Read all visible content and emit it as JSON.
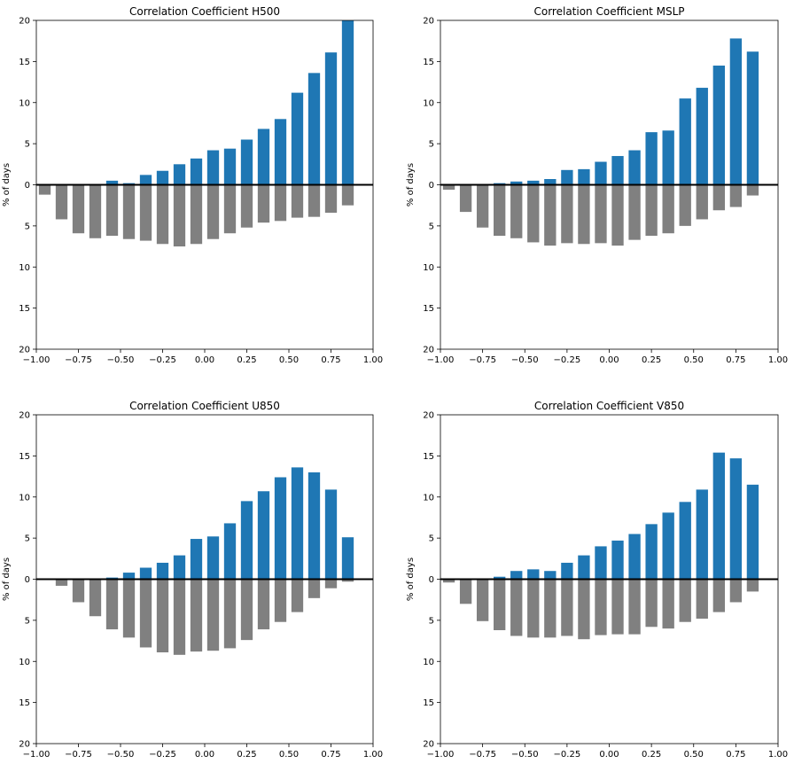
{
  "colors": {
    "positive": "#1f77b4",
    "negative": "#808080",
    "axis": "#000000",
    "background": "#ffffff"
  },
  "chart_data": [
    {
      "type": "bar",
      "title": "Correlation Coefficient H500",
      "xlabel": "",
      "ylabel": "% of days",
      "xlim": [
        -1.0,
        1.0
      ],
      "ylim": [
        -20,
        20
      ],
      "x_ticks": [
        "−1.00",
        "−0.75",
        "−0.50",
        "−0.25",
        "0.00",
        "0.25",
        "0.50",
        "0.75",
        "1.00"
      ],
      "y_ticks": [
        "20",
        "15",
        "10",
        "5",
        "0",
        "5",
        "10",
        "15",
        "20"
      ],
      "x": [
        -0.95,
        -0.85,
        -0.75,
        -0.65,
        -0.55,
        -0.45,
        -0.35,
        -0.25,
        -0.15,
        -0.05,
        0.05,
        0.15,
        0.25,
        0.35,
        0.45,
        0.55,
        0.65,
        0.75,
        0.85
      ],
      "series": [
        {
          "values": [
            0,
            0,
            0,
            0,
            0.5,
            0.2,
            1.2,
            1.7,
            2.5,
            3.2,
            4.2,
            4.4,
            5.5,
            6.8,
            8.0,
            11.2,
            13.6,
            16.1,
            20.0
          ]
        },
        {
          "values": [
            -1.2,
            -4.2,
            -5.9,
            -6.5,
            -6.2,
            -6.6,
            -6.8,
            -7.2,
            -7.5,
            -7.2,
            -6.6,
            -5.9,
            -5.2,
            -4.6,
            -4.4,
            -4.0,
            -3.9,
            -3.4,
            -2.5
          ]
        }
      ]
    },
    {
      "type": "bar",
      "title": "Correlation Coefficient MSLP",
      "xlabel": "",
      "ylabel": "% of days",
      "xlim": [
        -1.0,
        1.0
      ],
      "ylim": [
        -20,
        20
      ],
      "x_ticks": [
        "−1.00",
        "−0.75",
        "−0.50",
        "−0.25",
        "0.00",
        "0.25",
        "0.50",
        "0.75",
        "1.00"
      ],
      "y_ticks": [
        "20",
        "15",
        "10",
        "5",
        "0",
        "5",
        "10",
        "15",
        "20"
      ],
      "x": [
        -0.95,
        -0.85,
        -0.75,
        -0.65,
        -0.55,
        -0.45,
        -0.35,
        -0.25,
        -0.15,
        -0.05,
        0.05,
        0.15,
        0.25,
        0.35,
        0.45,
        0.55,
        0.65,
        0.75,
        0.85
      ],
      "series": [
        {
          "values": [
            0,
            0,
            0,
            0.2,
            0.4,
            0.5,
            0.7,
            1.8,
            1.9,
            2.8,
            3.5,
            4.2,
            6.4,
            6.6,
            10.5,
            11.8,
            14.5,
            17.8,
            16.2
          ]
        },
        {
          "values": [
            -0.6,
            -3.3,
            -5.2,
            -6.2,
            -6.5,
            -7.0,
            -7.4,
            -7.1,
            -7.2,
            -7.1,
            -7.4,
            -6.7,
            -6.2,
            -5.9,
            -5.0,
            -4.2,
            -3.1,
            -2.7,
            -1.3
          ]
        }
      ]
    },
    {
      "type": "bar",
      "title": "Correlation Coefficient U850",
      "xlabel": "",
      "ylabel": "% of days",
      "xlim": [
        -1.0,
        1.0
      ],
      "ylim": [
        -20,
        20
      ],
      "x_ticks": [
        "−1.00",
        "−0.75",
        "−0.50",
        "−0.25",
        "0.00",
        "0.25",
        "0.50",
        "0.75",
        "1.00"
      ],
      "y_ticks": [
        "20",
        "15",
        "10",
        "5",
        "0",
        "5",
        "10",
        "15",
        "20"
      ],
      "x": [
        -0.95,
        -0.85,
        -0.75,
        -0.65,
        -0.55,
        -0.45,
        -0.35,
        -0.25,
        -0.15,
        -0.05,
        0.05,
        0.15,
        0.25,
        0.35,
        0.45,
        0.55,
        0.65,
        0.75,
        0.85
      ],
      "series": [
        {
          "values": [
            0,
            0,
            0,
            0,
            0.2,
            0.8,
            1.4,
            2.0,
            2.9,
            4.9,
            5.2,
            6.8,
            9.5,
            10.7,
            12.4,
            13.6,
            13.0,
            10.9,
            5.1
          ]
        },
        {
          "values": [
            0,
            -0.8,
            -2.8,
            -4.5,
            -6.1,
            -7.1,
            -8.3,
            -8.9,
            -9.2,
            -8.8,
            -8.7,
            -8.4,
            -7.4,
            -6.1,
            -5.2,
            -4.0,
            -2.3,
            -1.1,
            -0.3
          ]
        }
      ]
    },
    {
      "type": "bar",
      "title": "Correlation Coefficient V850",
      "xlabel": "",
      "ylabel": "% of days",
      "xlim": [
        -1.0,
        1.0
      ],
      "ylim": [
        -20,
        20
      ],
      "x_ticks": [
        "−1.00",
        "−0.75",
        "−0.50",
        "−0.25",
        "0.00",
        "0.25",
        "0.50",
        "0.75",
        "1.00"
      ],
      "y_ticks": [
        "20",
        "15",
        "10",
        "5",
        "0",
        "5",
        "10",
        "15",
        "20"
      ],
      "x": [
        -0.95,
        -0.85,
        -0.75,
        -0.65,
        -0.55,
        -0.45,
        -0.35,
        -0.25,
        -0.15,
        -0.05,
        0.05,
        0.15,
        0.25,
        0.35,
        0.45,
        0.55,
        0.65,
        0.75,
        0.85
      ],
      "series": [
        {
          "values": [
            0,
            0,
            0,
            0.3,
            1.0,
            1.2,
            1.0,
            2.0,
            2.9,
            4.0,
            4.7,
            5.5,
            6.7,
            8.1,
            9.4,
            10.9,
            15.4,
            14.7,
            11.5
          ]
        },
        {
          "values": [
            -0.4,
            -3.0,
            -5.1,
            -6.2,
            -6.9,
            -7.1,
            -7.1,
            -6.9,
            -7.3,
            -6.8,
            -6.7,
            -6.7,
            -5.8,
            -6.0,
            -5.2,
            -4.8,
            -4.0,
            -2.8,
            -1.5
          ]
        }
      ]
    }
  ]
}
